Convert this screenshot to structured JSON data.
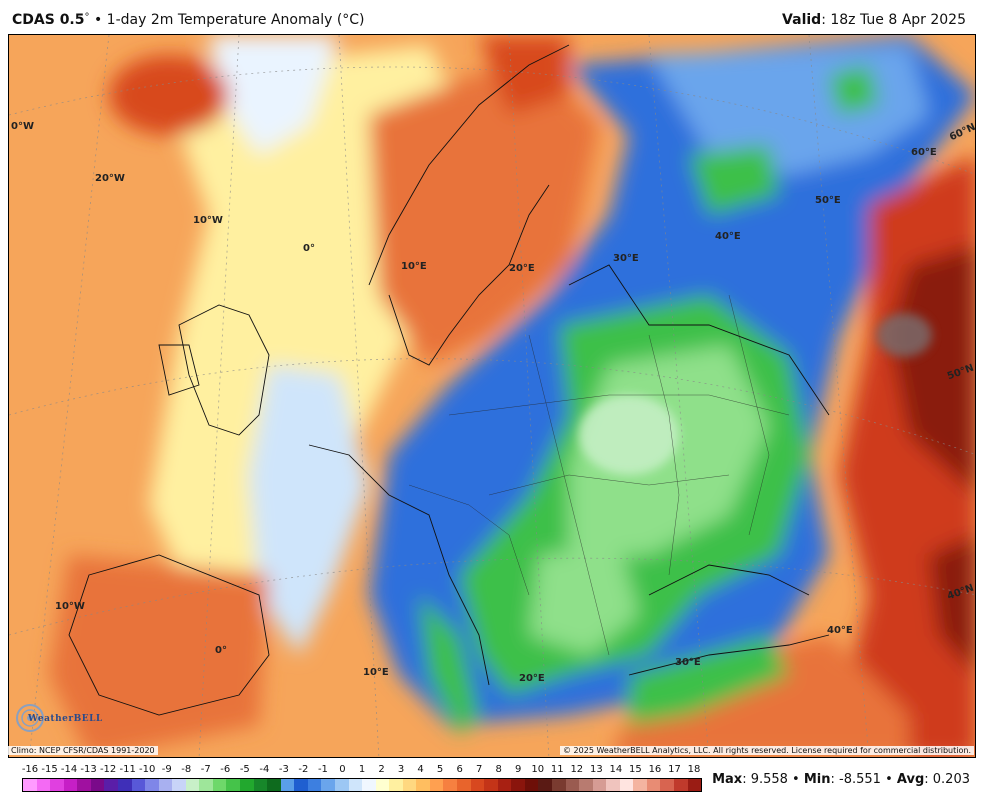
{
  "header": {
    "title_bold": "CDAS 0.5",
    "title_deg": "°",
    "title_sep": " • ",
    "title_rest": "1-day 2m Temperature Anomaly (°C)",
    "valid_label": "Valid",
    "valid_value": ": 18z Tue 8 Apr 2025"
  },
  "map": {
    "labels": {
      "lon_0w_top": "0°W",
      "lon_20w": "20°W",
      "lon_10w_top": "10°W",
      "lon_0": "0°",
      "lon_10e_top": "10°E",
      "lon_20e_top": "20°E",
      "lon_30e_top": "30°E",
      "lon_40e_top": "40°E",
      "lon_50e": "50°E",
      "lon_60e": "60°E",
      "lat_60n": "60°N",
      "lat_50n": "50°N",
      "lat_40n": "40°N",
      "lon_10w_bottom": "10°W",
      "lon_0_bottom": "0°",
      "lon_10e_bottom": "10°E",
      "lon_20e_bottom": "20°E",
      "lon_30e_bottom": "30°E",
      "lon_40e_bottom": "40°E"
    },
    "colors": {
      "strong_cold_green": "#1fa32b",
      "mid_green": "#3cc04a",
      "light_green": "#8fe08a",
      "blue": "#2f6fdc",
      "light_blue": "#8cc2f5",
      "pale": "#eaf4ff",
      "yellow": "#fff4a8",
      "orange": "#f6a55a",
      "red_orange": "#e8733a",
      "red": "#cf3a1f",
      "dark_red": "#8a1a0e",
      "gray": "#7a6a6a"
    }
  },
  "credits": {
    "climo": "Climo: NCEP CFSR/CDAS 1991-2020",
    "copyright": "© 2025 WeatherBELL Analytics, LLC. All rights reserved. License required for commercial distribution.",
    "logo": "WeatherBELL"
  },
  "scale": {
    "ticks": [
      "-16",
      "-15",
      "-14",
      "-13",
      "-12",
      "-11",
      "-10",
      "-9",
      "-8",
      "-7",
      "-6",
      "-5",
      "-4",
      "-3",
      "-2",
      "-1",
      "0",
      "1",
      "2",
      "3",
      "4",
      "5",
      "6",
      "7",
      "8",
      "9",
      "10",
      "11",
      "12",
      "13",
      "14",
      "15",
      "16",
      "17",
      "18"
    ],
    "colors": [
      "#ff9bff",
      "#f46af4",
      "#e040e0",
      "#c61fc6",
      "#a010a0",
      "#7a0a8a",
      "#5a1ea8",
      "#3f2fb8",
      "#5858d8",
      "#7f86e8",
      "#a8b0f0",
      "#c8d4f8",
      "#c8f0c8",
      "#9ee69a",
      "#6ed86a",
      "#45c34a",
      "#22a82e",
      "#17872a",
      "#0e6b1e",
      "#5a9fe8",
      "#1f5fd0",
      "#3d7fe0",
      "#6aa5ec",
      "#9cc7f4",
      "#cfe5fb",
      "#f0f7ff",
      "#ffffd0",
      "#fff0a0",
      "#ffd880",
      "#ffbe60",
      "#ffa050",
      "#f68040",
      "#e8642c",
      "#d8481f",
      "#c43418",
      "#a82012",
      "#8a150c",
      "#6e0f08",
      "#5a1a14",
      "#7a3b30",
      "#9a5b50",
      "#b87b70",
      "#d69c94",
      "#f0c4be",
      "#ffe4e0",
      "#f4b4a0",
      "#e88c74",
      "#d86450",
      "#c03a2c",
      "#9a1c14"
    ],
    "stats_max_label": "Max",
    "stats_max": ": 9.558",
    "stats_min_label": "Min",
    "stats_min": ": -8.551",
    "stats_avg_label": "Avg",
    "stats_avg": ": 0.203",
    "stats_sep": " • "
  }
}
